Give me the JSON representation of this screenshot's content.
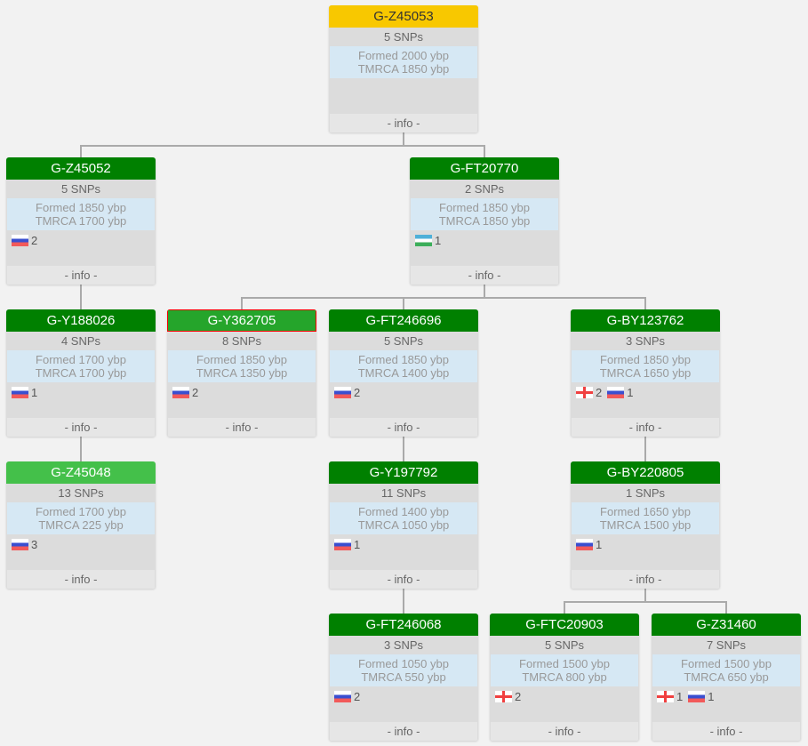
{
  "nodes": [
    {
      "id": "G-Z45053",
      "snps": "5 SNPs",
      "formed": "Formed 2000 ybp",
      "tmrca": "TMRCA 1850 ybp",
      "flags": [],
      "info": "- info -",
      "style": "root",
      "parent": null
    },
    {
      "id": "G-Z45052",
      "snps": "5 SNPs",
      "formed": "Formed 1850 ybp",
      "tmrca": "TMRCA 1700 ybp",
      "flags": [
        {
          "country": "ru",
          "count": "2"
        }
      ],
      "info": "- info -",
      "style": "normal",
      "parent": "G-Z45053"
    },
    {
      "id": "G-FT20770",
      "snps": "2 SNPs",
      "formed": "Formed 1850 ybp",
      "tmrca": "TMRCA 1850 ybp",
      "flags": [
        {
          "country": "uz",
          "count": "1"
        }
      ],
      "info": "- info -",
      "style": "normal",
      "parent": "G-Z45053"
    },
    {
      "id": "G-Y188026",
      "snps": "4 SNPs",
      "formed": "Formed 1700 ybp",
      "tmrca": "TMRCA 1700 ybp",
      "flags": [
        {
          "country": "ru",
          "count": "1"
        }
      ],
      "info": "- info -",
      "style": "normal",
      "parent": "G-Z45052"
    },
    {
      "id": "G-Y362705",
      "snps": "8 SNPs",
      "formed": "Formed 1850 ybp",
      "tmrca": "TMRCA 1350 ybp",
      "flags": [
        {
          "country": "ru",
          "count": "2"
        }
      ],
      "info": "- info -",
      "style": "selected",
      "parent": "G-FT20770"
    },
    {
      "id": "G-FT246696",
      "snps": "5 SNPs",
      "formed": "Formed 1850 ybp",
      "tmrca": "TMRCA 1400 ybp",
      "flags": [
        {
          "country": "ru",
          "count": "2"
        }
      ],
      "info": "- info -",
      "style": "normal",
      "parent": "G-FT20770"
    },
    {
      "id": "G-BY123762",
      "snps": "3 SNPs",
      "formed": "Formed 1850 ybp",
      "tmrca": "TMRCA 1650 ybp",
      "flags": [
        {
          "country": "ge",
          "count": "2"
        },
        {
          "country": "ru",
          "count": "1"
        }
      ],
      "info": "- info -",
      "style": "normal",
      "parent": "G-FT20770"
    },
    {
      "id": "G-Z45048",
      "snps": "13 SNPs",
      "formed": "Formed 1700 ybp",
      "tmrca": "TMRCA 225 ybp",
      "flags": [
        {
          "country": "ru",
          "count": "3"
        }
      ],
      "info": "- info -",
      "style": "light",
      "parent": "G-Y188026"
    },
    {
      "id": "G-Y197792",
      "snps": "11 SNPs",
      "formed": "Formed 1400 ybp",
      "tmrca": "TMRCA 1050 ybp",
      "flags": [
        {
          "country": "ru",
          "count": "1"
        }
      ],
      "info": "- info -",
      "style": "normal",
      "parent": "G-FT246696"
    },
    {
      "id": "G-BY220805",
      "snps": "1 SNPs",
      "formed": "Formed 1650 ybp",
      "tmrca": "TMRCA 1500 ybp",
      "flags": [
        {
          "country": "ru",
          "count": "1"
        }
      ],
      "info": "- info -",
      "style": "normal",
      "parent": "G-BY123762"
    },
    {
      "id": "G-FT246068",
      "snps": "3 SNPs",
      "formed": "Formed 1050 ybp",
      "tmrca": "TMRCA 550 ybp",
      "flags": [
        {
          "country": "ru",
          "count": "2"
        }
      ],
      "info": "- info -",
      "style": "normal",
      "parent": "G-Y197792"
    },
    {
      "id": "G-FTC20903",
      "snps": "5 SNPs",
      "formed": "Formed 1500 ybp",
      "tmrca": "TMRCA 800 ybp",
      "flags": [
        {
          "country": "ge",
          "count": "2"
        }
      ],
      "info": "- info -",
      "style": "normal",
      "parent": "G-BY220805"
    },
    {
      "id": "G-Z31460",
      "snps": "7 SNPs",
      "formed": "Formed 1500 ybp",
      "tmrca": "TMRCA 650 ybp",
      "flags": [
        {
          "country": "ge",
          "count": "1"
        },
        {
          "country": "ru",
          "count": "1"
        }
      ],
      "info": "- info -",
      "style": "normal",
      "parent": "G-BY220805"
    }
  ]
}
